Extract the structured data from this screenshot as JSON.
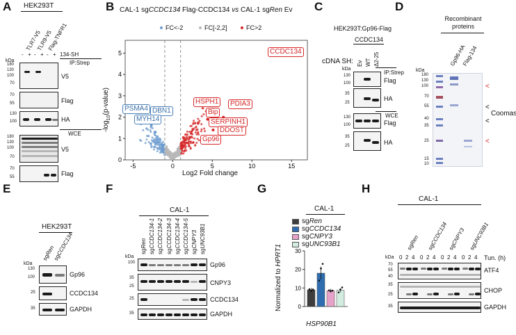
{
  "panels": {
    "A": "A",
    "B": "B",
    "C": "C",
    "D": "D",
    "E": "E",
    "F": "F",
    "G": "G",
    "H": "H"
  },
  "panelA": {
    "cell_line": "HEK293T",
    "lanes": [
      "TLR7-V5",
      "TLR9-V5",
      "Flag-TNFR1"
    ],
    "treat_label": "134-SH",
    "treat_signs": [
      "-",
      "+",
      "-",
      "+",
      "-",
      "+"
    ],
    "ip_label": "IP:Strep",
    "wce_label": "WCE",
    "blot_labels": [
      "V5",
      "Flag",
      "HA",
      "V5",
      "Flag",
      "HA"
    ],
    "kda": "kDa",
    "mw_ip_v5": [
      "180",
      "130",
      "100",
      "70"
    ],
    "mw_ip_flag": [
      "70",
      "55"
    ],
    "mw_ip_ha": [
      "130",
      "100"
    ],
    "mw_wce_v5": [
      "180",
      "130",
      "100",
      "70"
    ],
    "mw_wce_flag": [
      "70",
      "55"
    ],
    "mw_wce_ha": [
      "130",
      "100"
    ]
  },
  "panelB": {
    "title_parts": [
      "CAL-1 sg",
      "CCDC134",
      " Flag-CCDC134 ",
      "vs",
      " CAL-1 sg",
      "Ren",
      " Ev"
    ],
    "legend": [
      "FC<-2",
      "FC[-2,2]",
      "FC>2"
    ],
    "colors": {
      "down": "#6e9ccf",
      "mid": "#b8b8b8",
      "up": "#d62728"
    },
    "xlabel": "Log2 Fold change",
    "ylabel": "-log10(p-value)",
    "ylabel_parts": [
      "-log",
      "10",
      "(p-value)"
    ],
    "x_ticks": [
      "-5",
      "0",
      "5",
      "10",
      "15"
    ],
    "y_ticks": [
      "0",
      "1",
      "2",
      "3",
      "4",
      "5"
    ],
    "up_labels": [
      "CCDC134",
      "HSPH1",
      "Bip",
      "PDIA3",
      "SERPINH1",
      "DDOST",
      "Gp96"
    ],
    "down_labels": [
      "PSMA4",
      "DBN1",
      "MYH14"
    ]
  },
  "chart_data": {
    "type": "scatter",
    "title": "CAL-1 sgCCDC134 Flag-CCDC134 vs CAL-1 sgRen Ev",
    "xlabel": "Log2 Fold change",
    "ylabel": "-log10(p-value)",
    "xlim": [
      -6,
      17
    ],
    "ylim": [
      0,
      5.6
    ],
    "thresholds": [
      -1,
      1
    ],
    "series": [
      {
        "name": "FC>2",
        "highlighted": [
          {
            "label": "CCDC134",
            "x": 15.8,
            "y": 5.2
          },
          {
            "label": "HSPH1",
            "x": 4.5,
            "y": 2.2
          },
          {
            "label": "Bip",
            "x": 4.4,
            "y": 1.9
          },
          {
            "label": "PDIA3",
            "x": 6.4,
            "y": 2.0
          },
          {
            "label": "SERPINH1",
            "x": 5.9,
            "y": 1.6
          },
          {
            "label": "DDOST",
            "x": 5.1,
            "y": 1.4
          },
          {
            "label": "Gp96",
            "x": 3.7,
            "y": 1.1
          }
        ]
      },
      {
        "name": "FC<-2",
        "highlighted": [
          {
            "label": "PSMA4",
            "x": -4.3,
            "y": 1.8
          },
          {
            "label": "DBN1",
            "x": -2.7,
            "y": 1.6
          },
          {
            "label": "MYH14",
            "x": -2.2,
            "y": 1.3
          }
        ]
      },
      {
        "name": "FC[-2,2]",
        "highlighted": []
      }
    ]
  },
  "panelC": {
    "header": "HEK293T:Gp96-Flag",
    "construct": "CCDC134",
    "cdna_label": "cDNA SH:",
    "lanes": [
      "Ev",
      "WT",
      "Δ2-25"
    ],
    "ip_label": "IP:Strep",
    "wce_label": "WCE",
    "blot_labels": [
      "Flag",
      "HA",
      "Flag",
      "HA"
    ],
    "kda": "kDa",
    "mw_ip_flag": [
      "130",
      "100"
    ],
    "mw_ip_ha": [
      "35",
      "25"
    ],
    "mw_wce_flag": [
      "130",
      "100"
    ],
    "mw_wce_ha": [
      "35",
      "25"
    ]
  },
  "panelD": {
    "header": "Recombinant proteins",
    "lanes": [
      "Gp96-HA",
      "Flag-134"
    ],
    "kda": "kDa",
    "mw": [
      "180",
      "130",
      "100",
      "70",
      "55",
      "40",
      "35",
      "25",
      "15",
      "10"
    ],
    "stain_label": "Coomassie"
  },
  "panelE": {
    "cell_line": "HEK293T",
    "lanes": [
      "sgRen",
      "sgCCDC134"
    ],
    "lanes_prefix": [
      "sg",
      "sg"
    ],
    "lanes_gene": [
      "Ren",
      "CCDC134"
    ],
    "blot_labels": [
      "Gp96",
      "CCDC134",
      "GAPDH"
    ],
    "kda": "kDa",
    "mw_gp96": [
      "130",
      "100"
    ],
    "mw_ccdc": [
      "25"
    ],
    "mw_gapdh": [
      "35"
    ]
  },
  "panelF": {
    "cell_line": "CAL-1",
    "lanes_prefix": [
      "sg",
      "sg",
      "sg",
      "sg",
      "sg",
      "sg",
      "sg",
      "sg"
    ],
    "lanes_gene": [
      "Ren",
      "CCDC134-1",
      "CCDC134-2",
      "CCDC134-3",
      "CCDC134-4",
      "CCDC134-5",
      "CNPY3",
      "UNC93B1"
    ],
    "blot_labels": [
      "Gp96",
      "CNPY3",
      "CCDC134",
      "GAPDH"
    ],
    "kda": "kDa",
    "mw_gp96": [
      "100"
    ],
    "mw_cnpy3": [
      "35",
      "25"
    ],
    "mw_ccdc": [
      "25"
    ],
    "mw_gapdh": [
      "35"
    ]
  },
  "panelG": {
    "cell_line": "CAL-1",
    "legend_prefix": [
      "sg",
      "sg",
      "sg",
      "sg"
    ],
    "legend_gene": [
      "Ren",
      "CCDC134",
      "CNPY3",
      "UNC93B1"
    ],
    "legend_colors": [
      "#3d3d3d",
      "#2f6db0",
      "#e6a2c8",
      "#d2ece0"
    ],
    "ylabel": "Normalized to HPRT1",
    "ylabel_prefix": "Normalized to ",
    "ylabel_gene": "HPRT1",
    "gene": "HSP90B1",
    "y_ticks": [
      "0",
      "10",
      "20",
      "30"
    ],
    "values": [
      9,
      18,
      8.5,
      8.8
    ]
  },
  "panelH": {
    "cell_line": "CAL-1",
    "lanes_prefix": [
      "sg",
      "sg",
      "sg",
      "sg"
    ],
    "lanes_gene": [
      "Ren",
      "CCDC134",
      "CNPY3",
      "UNC93B1"
    ],
    "tun_values": [
      "0",
      "2",
      "4",
      "0",
      "2",
      "4",
      "0",
      "2",
      "4",
      "0",
      "2",
      "4"
    ],
    "tun_label": "Tun. (h)",
    "blot_labels": [
      "ATF4",
      "CHOP",
      "GAPDH"
    ],
    "kda": "kDa",
    "mw_atf4": [
      "70",
      "55",
      "40"
    ],
    "mw_chop": [
      "35",
      "25"
    ],
    "mw_gapdh": [
      "35"
    ]
  }
}
